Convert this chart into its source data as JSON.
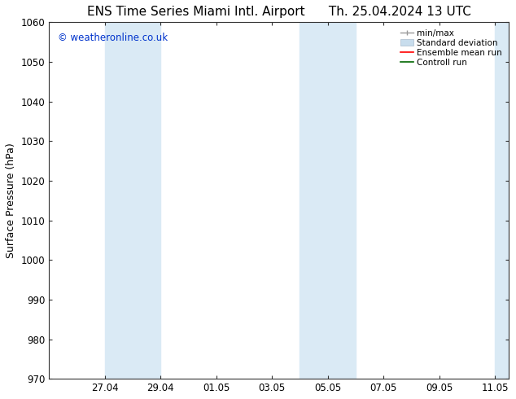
{
  "title_left": "ENS Time Series Miami Intl. Airport",
  "title_right": "Th. 25.04.2024 13 UTC",
  "ylabel": "Surface Pressure (hPa)",
  "ylim": [
    970,
    1060
  ],
  "yticks": [
    970,
    980,
    990,
    1000,
    1010,
    1020,
    1030,
    1040,
    1050,
    1060
  ],
  "xtick_labels": [
    "27.04",
    "29.04",
    "01.05",
    "03.05",
    "05.05",
    "07.05",
    "09.05",
    "11.05"
  ],
  "xtick_positions": [
    2,
    4,
    6,
    8,
    10,
    12,
    14,
    16
  ],
  "xlim": [
    0,
    16.5
  ],
  "background_color": "#ffffff",
  "plot_bg_color": "#ffffff",
  "shade_color": "#daeaf5",
  "watermark_text": "© weatheronline.co.uk",
  "watermark_color": "#0033cc",
  "title_fontsize": 11,
  "tick_fontsize": 8.5,
  "ylabel_fontsize": 9
}
